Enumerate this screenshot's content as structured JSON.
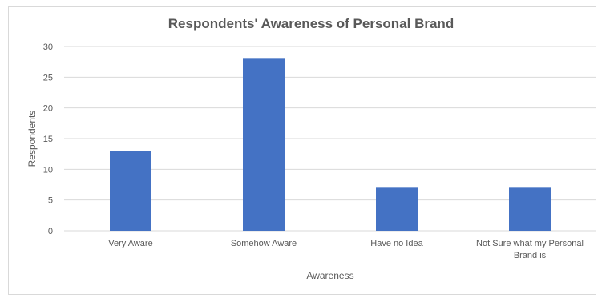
{
  "chart_data": {
    "type": "bar",
    "title": "Respondents' Awareness of Personal Brand",
    "xlabel": "Awareness",
    "ylabel": "Respondents",
    "categories": [
      [
        "Very Aware"
      ],
      [
        "Somehow Aware"
      ],
      [
        "Have no Idea"
      ],
      [
        "Not Sure what my Personal",
        "Brand is"
      ]
    ],
    "values": [
      13,
      28,
      7,
      7
    ],
    "ylim": [
      0,
      30
    ],
    "yticks": [
      "0",
      "5",
      "10",
      "15",
      "20",
      "25",
      "30"
    ],
    "grid": true,
    "legend": "none",
    "bar_color": "#4472C4",
    "grid_color": "#d9d9d9"
  }
}
